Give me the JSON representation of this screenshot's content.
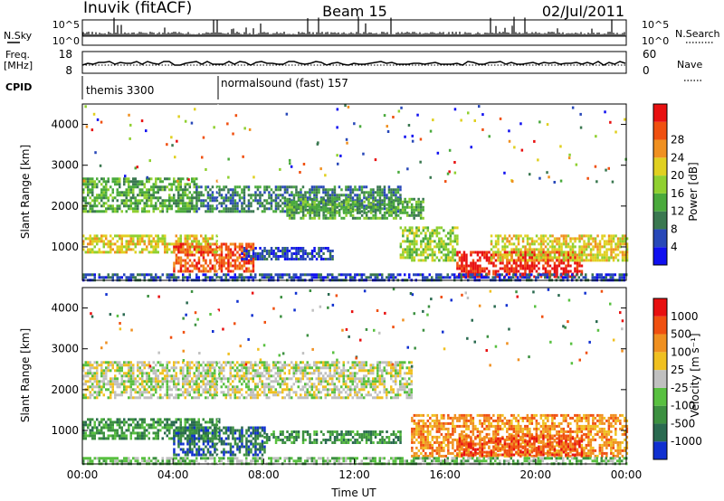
{
  "header": {
    "station": "Inuvik (fitACF)",
    "beam": "Beam 15",
    "date": "02/Jul/2011"
  },
  "nsky_panel": {
    "left_label": "N.Sky",
    "right_label": "N.Search",
    "left_ticks": [
      "10^5",
      "10^0"
    ],
    "right_ticks": [
      "10^5",
      "10^0"
    ]
  },
  "freq_panel": {
    "left_label_1": "Freq.",
    "left_label_2": "[MHz]",
    "right_label": "Nave",
    "left_ticks": [
      "18",
      "8"
    ],
    "right_ticks": [
      "60",
      "0"
    ],
    "cpid_label": "CPID",
    "cpid_segments": [
      {
        "start_hour": 0,
        "label": "themis 3300"
      },
      {
        "start_hour": 6,
        "label": "normalsound (fast) 157"
      }
    ]
  },
  "chart_data": [
    {
      "type": "heatmap",
      "name": "power",
      "ylabel": "Slant Range [km]",
      "xlim": [
        0,
        24
      ],
      "ylim": [
        180,
        4500
      ],
      "y_ticks": [
        1000,
        2000,
        3000,
        4000
      ],
      "colorbar": {
        "label": "Power [dB]",
        "ticks": [
          "4",
          "8",
          "12",
          "16",
          "20",
          "24",
          "28"
        ],
        "colors": [
          "#1010f0",
          "#2848b8",
          "#3a7850",
          "#4aaa3c",
          "#90d030",
          "#e0d020",
          "#f09020",
          "#f05010",
          "#e81010"
        ]
      },
      "regions": [
        {
          "t0": 0.0,
          "t1": 5.0,
          "r0": 1900,
          "r1": 2700,
          "level": 3
        },
        {
          "t0": 5.0,
          "t1": 14.0,
          "r0": 1900,
          "r1": 2500,
          "level": 2
        },
        {
          "t0": 9.0,
          "t1": 15.0,
          "r0": 1700,
          "r1": 2200,
          "level": 3
        },
        {
          "t0": 0.0,
          "t1": 6.0,
          "r0": 900,
          "r1": 1300,
          "level": 5
        },
        {
          "t0": 4.0,
          "t1": 7.5,
          "r0": 400,
          "r1": 1100,
          "level": 7
        },
        {
          "t0": 7.0,
          "t1": 11.0,
          "r0": 700,
          "r1": 1000,
          "level": 1
        },
        {
          "t0": 14.0,
          "t1": 16.5,
          "r0": 700,
          "r1": 1500,
          "level": 4
        },
        {
          "t0": 16.5,
          "t1": 22.0,
          "r0": 300,
          "r1": 900,
          "level": 8
        },
        {
          "t0": 18.0,
          "t1": 24.0,
          "r0": 700,
          "r1": 1300,
          "level": 5
        },
        {
          "t0": 0.0,
          "t1": 24.0,
          "r0": 180,
          "r1": 350,
          "level": 1
        }
      ]
    },
    {
      "type": "heatmap",
      "name": "velocity",
      "ylabel": "Slant Range [km]",
      "xlabel": "Time UT",
      "xlim": [
        0,
        24
      ],
      "ylim": [
        180,
        4500
      ],
      "y_ticks": [
        1000,
        2000,
        3000,
        4000
      ],
      "x_ticks": [
        "00:00",
        "04:00",
        "08:00",
        "12:00",
        "16:00",
        "20:00",
        "00:00"
      ],
      "colorbar": {
        "label": "Velocity [m s⁻¹]",
        "ticks": [
          "1000",
          "500",
          "100",
          "25",
          "-25",
          "-100",
          "-500",
          "-1000"
        ],
        "colors": [
          "#1030d0",
          "#2a6a50",
          "#3c9040",
          "#58c040",
          "#c0c0c0",
          "#f0c020",
          "#f09020",
          "#f05010",
          "#e81010"
        ]
      },
      "regions": [
        {
          "t0": 0.0,
          "t1": 14.5,
          "r0": 1800,
          "r1": 2700,
          "level": 4
        },
        {
          "t0": 0.0,
          "t1": 6.0,
          "r0": 800,
          "r1": 1300,
          "level": 2
        },
        {
          "t0": 4.0,
          "t1": 8.0,
          "r0": 400,
          "r1": 1100,
          "level": 1
        },
        {
          "t0": 8.0,
          "t1": 14.0,
          "r0": 700,
          "r1": 1000,
          "level": 2
        },
        {
          "t0": 14.5,
          "t1": 24.0,
          "r0": 400,
          "r1": 1400,
          "level": 6
        },
        {
          "t0": 16.5,
          "t1": 22.0,
          "r0": 400,
          "r1": 900,
          "level": 7
        },
        {
          "t0": 0.0,
          "t1": 24.0,
          "r0": 180,
          "r1": 350,
          "level": 3
        }
      ]
    }
  ]
}
